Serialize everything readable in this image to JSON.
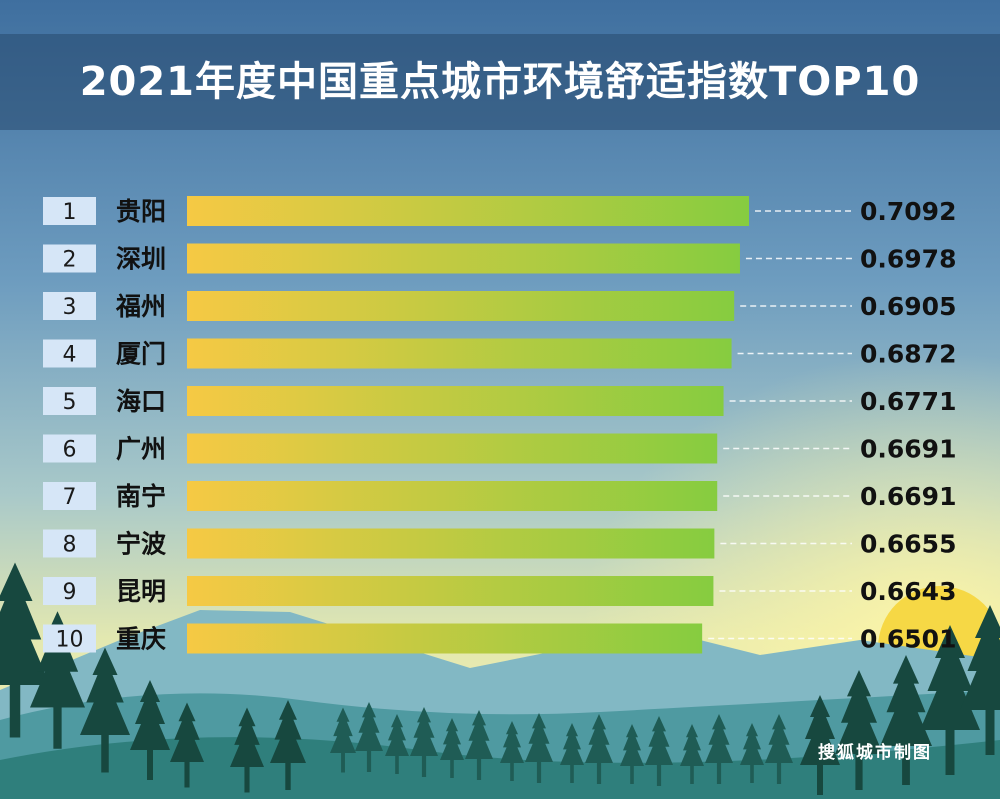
{
  "title": "2021年度中国重点城市环境舒适指数TOP10",
  "footer": "搜狐城市制图",
  "colors": {
    "bar_start": "#f6c944",
    "bar_end": "#86cc40",
    "rank_box": "#d6e6f7",
    "value_text": "#111111"
  },
  "chart_data": {
    "type": "bar",
    "orientation": "horizontal",
    "title": "2021年度中国重点城市环境舒适指数TOP10",
    "ranks": [
      "1",
      "2",
      "3",
      "4",
      "5",
      "6",
      "7",
      "8",
      "9",
      "10"
    ],
    "categories": [
      "贵阳",
      "深圳",
      "福州",
      "厦门",
      "海口",
      "广州",
      "南宁",
      "宁波",
      "昆明",
      "重庆"
    ],
    "value_labels": [
      "0.7092",
      "0.6978",
      "0.6905",
      "0.6872",
      "0.6771",
      "0.6691",
      "0.6691",
      "0.6655",
      "0.6643",
      "0.6501"
    ],
    "values": [
      0.7092,
      0.6978,
      0.6905,
      0.6872,
      0.6771,
      0.6691,
      0.6691,
      0.6655,
      0.6643,
      0.6501
    ],
    "xlim": [
      0,
      0.7092
    ]
  }
}
